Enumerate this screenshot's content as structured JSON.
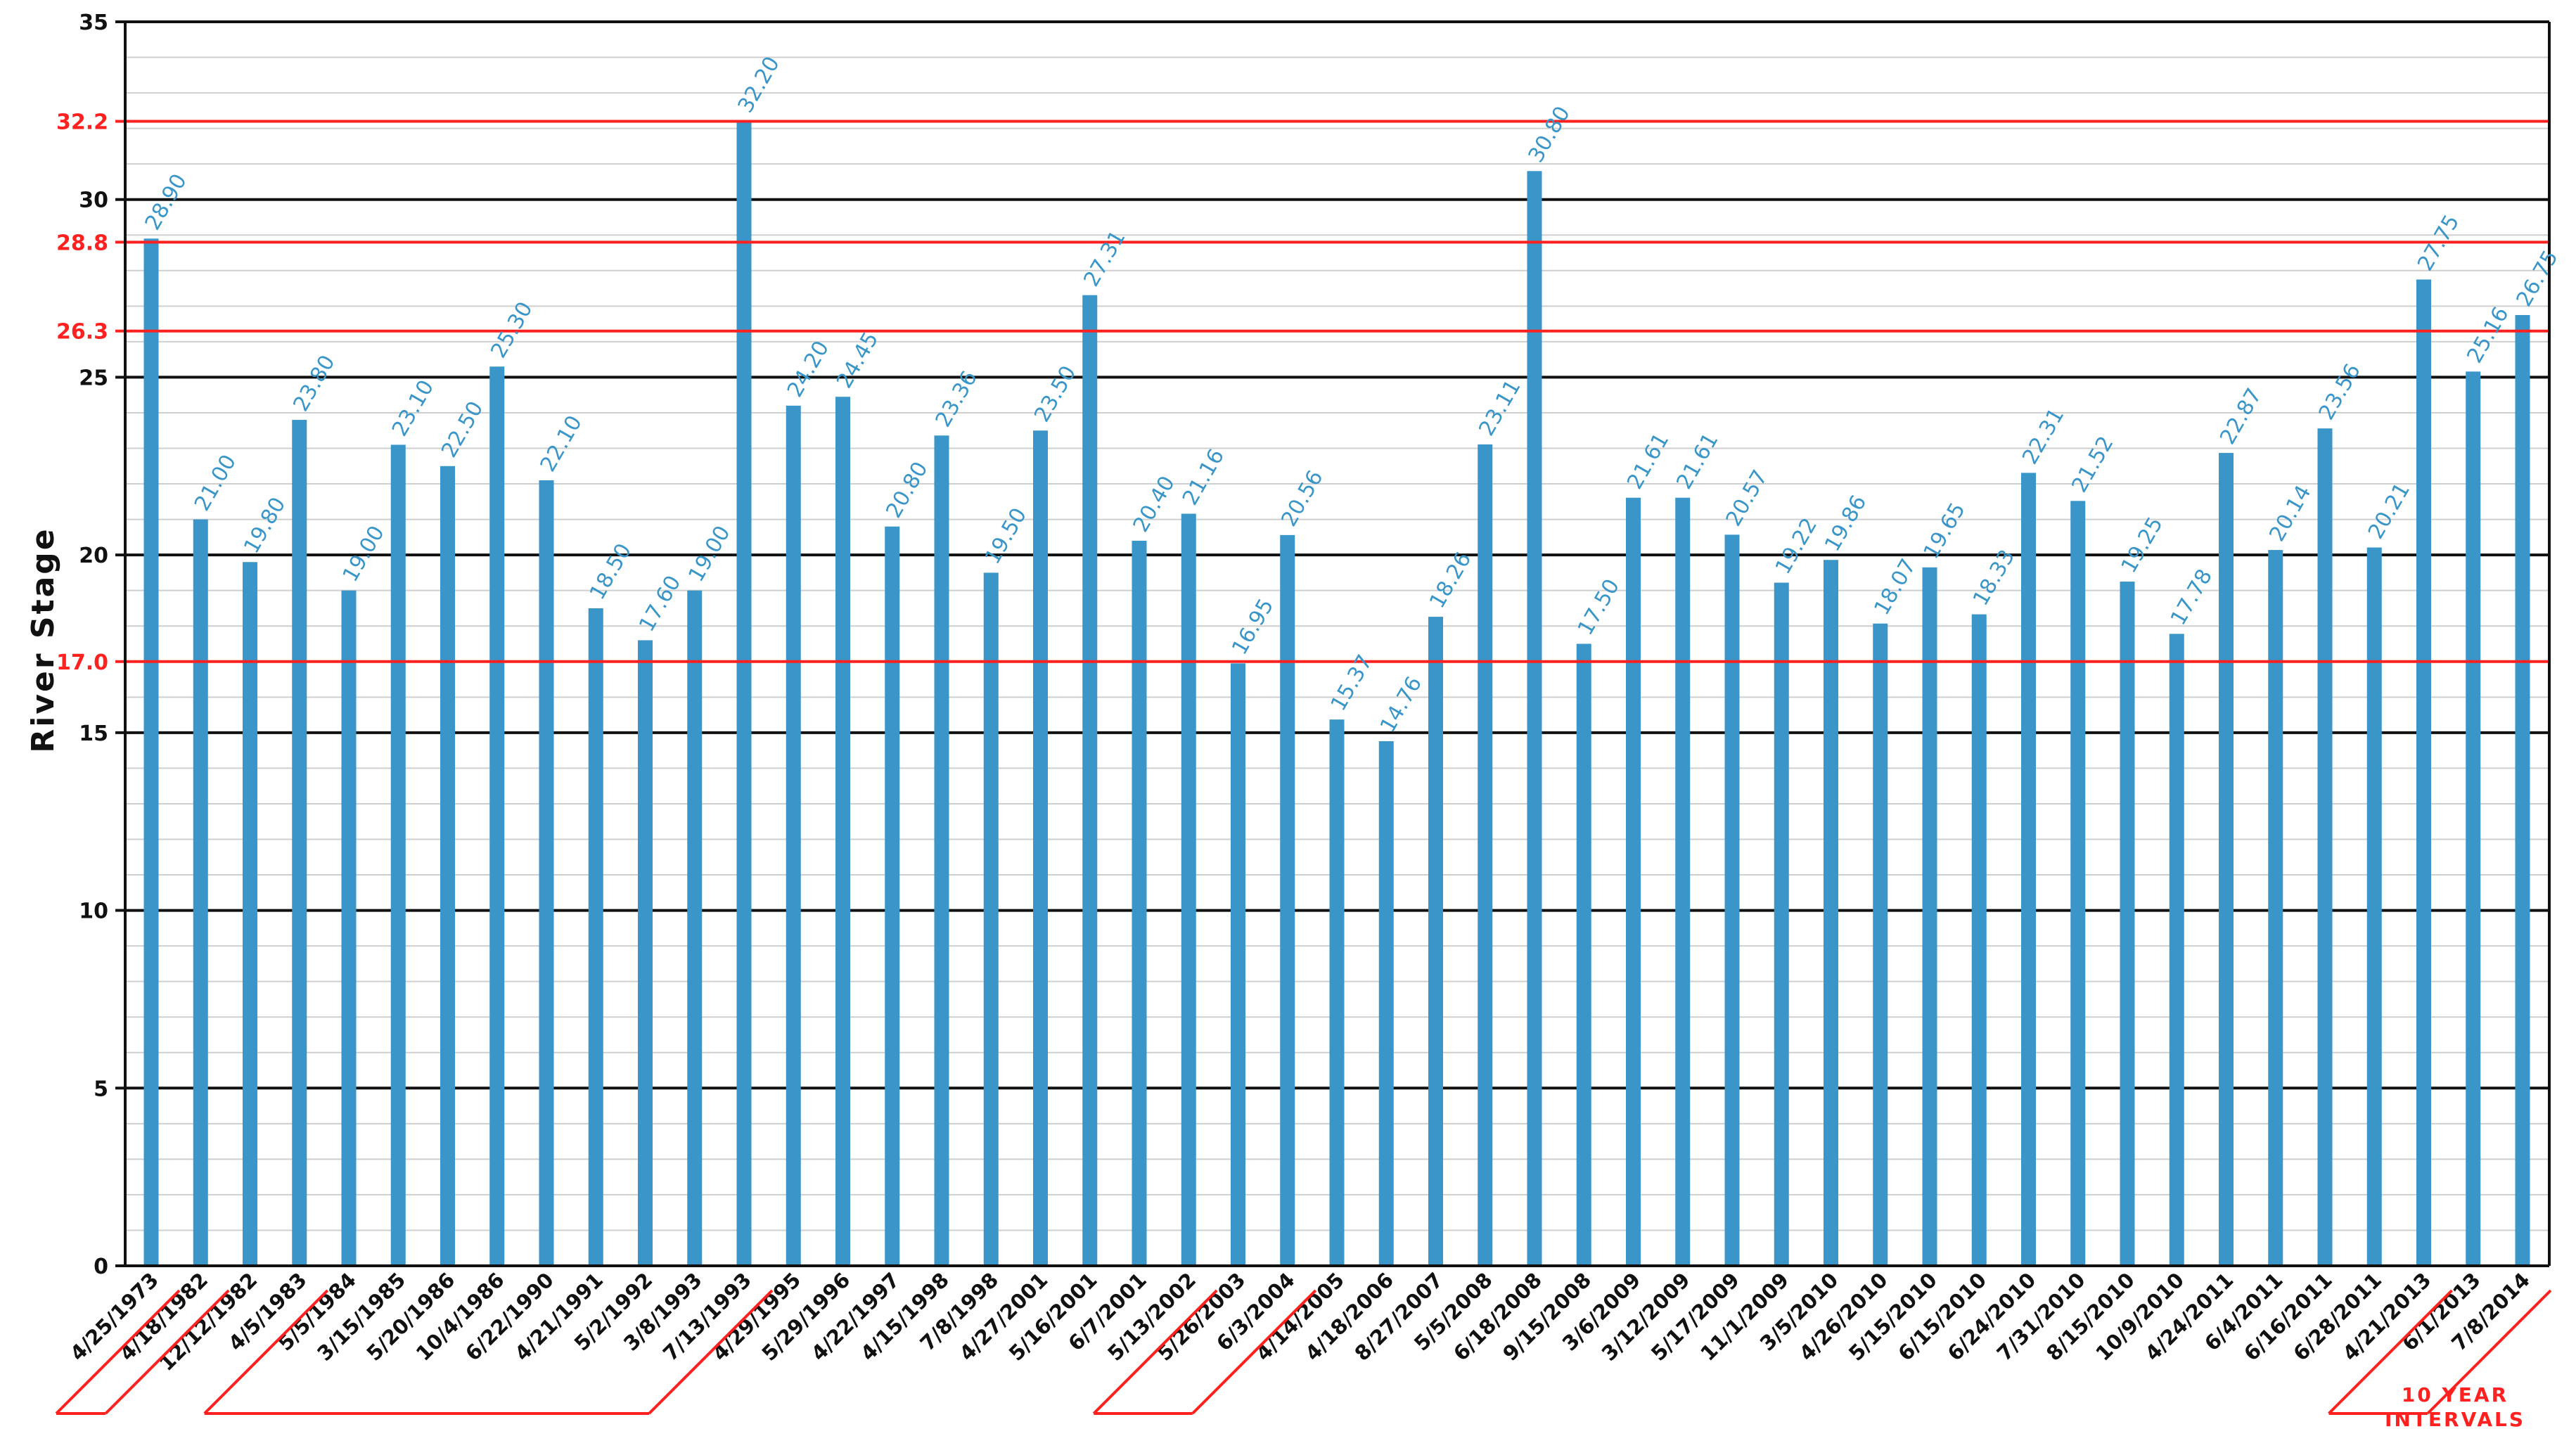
{
  "chart_data": {
    "type": "bar",
    "ylabel": "River Stage",
    "xlabel": "",
    "title": "",
    "ylim": [
      0,
      35
    ],
    "y_ticks": [
      0,
      5,
      10,
      15,
      20,
      25,
      30,
      35
    ],
    "grid": true,
    "minor_grid_step": 1,
    "categories": [
      "4/25/1973",
      "4/18/1982",
      "12/12/1982",
      "4/5/1983",
      "5/5/1984",
      "3/15/1985",
      "5/20/1986",
      "10/4/1986",
      "6/22/1990",
      "4/21/1991",
      "5/2/1992",
      "3/8/1993",
      "7/13/1993",
      "4/29/1995",
      "5/29/1996",
      "4/22/1997",
      "4/15/1998",
      "7/8/1998",
      "4/27/2001",
      "5/16/2001",
      "6/7/2001",
      "5/13/2002",
      "5/26/2003",
      "6/3/2004",
      "4/14/2005",
      "4/18/2006",
      "8/27/2007",
      "5/5/2008",
      "6/18/2008",
      "9/15/2008",
      "3/6/2009",
      "3/12/2009",
      "5/17/2009",
      "11/1/2009",
      "3/5/2010",
      "4/26/2010",
      "5/15/2010",
      "6/15/2010",
      "6/24/2010",
      "7/31/2010",
      "8/15/2010",
      "10/9/2010",
      "4/24/2011",
      "6/4/2011",
      "6/16/2011",
      "6/28/2011",
      "4/21/2013",
      "6/1/2013",
      "7/8/2014"
    ],
    "values": [
      28.9,
      21.0,
      19.8,
      23.8,
      19.0,
      23.1,
      22.5,
      25.3,
      22.1,
      18.5,
      17.6,
      19.0,
      32.2,
      24.2,
      24.45,
      20.8,
      23.36,
      19.5,
      23.5,
      27.31,
      20.4,
      21.16,
      16.95,
      20.56,
      15.37,
      14.76,
      18.26,
      23.11,
      30.8,
      17.5,
      21.61,
      21.61,
      20.57,
      19.22,
      19.86,
      18.07,
      19.65,
      18.33,
      22.31,
      21.52,
      19.25,
      17.78,
      22.87,
      20.14,
      23.56,
      20.21,
      27.75,
      25.16,
      26.75
    ],
    "data_labels": [
      "28.90",
      "21.00",
      "19.80",
      "23.80",
      "19.00",
      "23.10",
      "22.50",
      "25.30",
      "22.10",
      "18.50",
      "17.60",
      "19.00",
      "32.20",
      "24.20",
      "24.45",
      "20.80",
      "23.36",
      "19.50",
      "23.50",
      "27.31",
      "20.40",
      "21.16",
      "16.95",
      "20.56",
      "15.37",
      "14.76",
      "18.26",
      "23.11",
      "30.80",
      "17.50",
      "21.61",
      "21.61",
      "20.57",
      "19.22",
      "19.86",
      "18.07",
      "19.65",
      "18.33",
      "22.31",
      "21.52",
      "19.25",
      "17.78",
      "22.87",
      "20.14",
      "23.56",
      "20.21",
      "27.75",
      "25.16",
      "26.75"
    ],
    "bar_color": "#3a96c8",
    "reference_lines": [
      {
        "value": 32.2,
        "label": "32.2",
        "color": "#ff2020"
      },
      {
        "value": 28.8,
        "label": "28.8",
        "color": "#ff2020"
      },
      {
        "value": 26.3,
        "label": "26.3",
        "color": "#ff2020"
      },
      {
        "value": 17.0,
        "label": "17.0",
        "color": "#ff2020"
      }
    ],
    "interval_markers": {
      "note_line1": "10  YEAR",
      "note_line2": "INTERVALS",
      "color": "#ff2020",
      "segments": [
        [
          0,
          1
        ],
        [
          3,
          12
        ],
        [
          21,
          23
        ],
        [
          46,
          48
        ]
      ]
    }
  }
}
